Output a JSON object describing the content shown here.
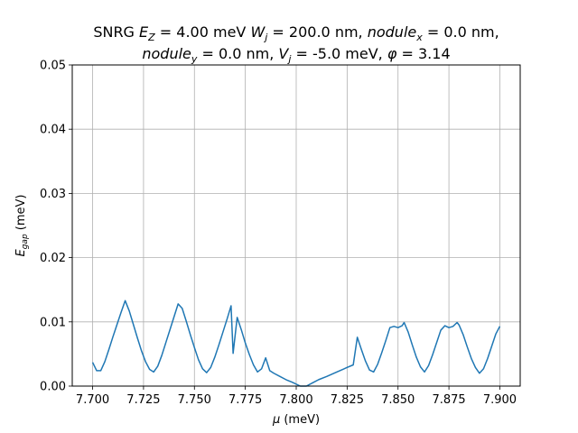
{
  "chart_data": {
    "type": "line",
    "title_line1": "SNRG E_Z = 4.00 meV W_j = 200.0 nm, nodule_x = 0.0 nm,",
    "title_line2": "nodule_y = 0.0 nm, V_j = -5.0 meV, φ = 3.14",
    "xlabel": "μ (meV)",
    "ylabel": "E_gap (meV)",
    "xlim": [
      7.69,
      7.91
    ],
    "ylim": [
      0.0,
      0.05
    ],
    "grid": true,
    "colors": {
      "line": "#1f77b4",
      "grid": "#b0b0b0"
    },
    "xticks": [
      {
        "v": 7.7,
        "label": "7.700"
      },
      {
        "v": 7.725,
        "label": "7.725"
      },
      {
        "v": 7.75,
        "label": "7.750"
      },
      {
        "v": 7.775,
        "label": "7.775"
      },
      {
        "v": 7.8,
        "label": "7.800"
      },
      {
        "v": 7.825,
        "label": "7.825"
      },
      {
        "v": 7.85,
        "label": "7.850"
      },
      {
        "v": 7.875,
        "label": "7.875"
      },
      {
        "v": 7.9,
        "label": "7.900"
      }
    ],
    "yticks": [
      {
        "v": 0.0,
        "label": "0.00"
      },
      {
        "v": 0.01,
        "label": "0.01"
      },
      {
        "v": 0.02,
        "label": "0.02"
      },
      {
        "v": 0.03,
        "label": "0.03"
      },
      {
        "v": 0.04,
        "label": "0.04"
      },
      {
        "v": 0.05,
        "label": "0.05"
      }
    ],
    "series": [
      {
        "x": [
          7.7,
          7.702,
          7.704,
          7.706,
          7.708,
          7.71,
          7.712,
          7.714,
          7.716,
          7.718,
          7.72,
          7.722,
          7.724,
          7.726,
          7.728,
          7.73,
          7.732,
          7.734,
          7.736,
          7.738,
          7.74,
          7.742,
          7.744,
          7.746,
          7.748,
          7.75,
          7.752,
          7.754,
          7.756,
          7.758,
          7.76,
          7.762,
          7.764,
          7.766,
          7.768,
          7.769,
          7.771,
          7.773,
          7.775,
          7.777,
          7.779,
          7.781,
          7.783,
          7.785,
          7.787,
          7.789,
          7.792,
          7.795,
          7.798,
          7.802,
          7.805,
          7.808,
          7.811,
          7.815,
          7.82,
          7.825,
          7.828,
          7.83,
          7.832,
          7.834,
          7.836,
          7.838,
          7.84,
          7.842,
          7.844,
          7.846,
          7.848,
          7.85,
          7.852,
          7.853,
          7.855,
          7.857,
          7.859,
          7.861,
          7.863,
          7.865,
          7.867,
          7.869,
          7.871,
          7.873,
          7.875,
          7.877,
          7.879,
          7.88,
          7.882,
          7.884,
          7.886,
          7.888,
          7.89,
          7.892,
          7.894,
          7.896,
          7.898,
          7.9
        ],
        "y": [
          0.0037,
          0.0024,
          0.0024,
          0.0038,
          0.0057,
          0.0077,
          0.0096,
          0.0115,
          0.0133,
          0.0117,
          0.0096,
          0.0075,
          0.0055,
          0.0038,
          0.0026,
          0.0022,
          0.0031,
          0.0048,
          0.0068,
          0.0088,
          0.0108,
          0.0128,
          0.0121,
          0.0101,
          0.008,
          0.006,
          0.0041,
          0.0027,
          0.0021,
          0.0029,
          0.0045,
          0.0064,
          0.0084,
          0.0104,
          0.0125,
          0.0051,
          0.0107,
          0.0088,
          0.0067,
          0.0049,
          0.0033,
          0.0022,
          0.0027,
          0.0044,
          0.0024,
          0.002,
          0.0015,
          0.001,
          0.0006,
          0.0,
          0.0,
          0.0005,
          0.001,
          0.0015,
          0.0022,
          0.0029,
          0.0033,
          0.0076,
          0.0057,
          0.0039,
          0.0025,
          0.0022,
          0.0034,
          0.0052,
          0.0071,
          0.0091,
          0.0093,
          0.0091,
          0.0094,
          0.0099,
          0.0084,
          0.0064,
          0.0045,
          0.003,
          0.0022,
          0.0032,
          0.0049,
          0.0068,
          0.0087,
          0.0094,
          0.0091,
          0.0093,
          0.0099,
          0.0095,
          0.008,
          0.0061,
          0.0043,
          0.0029,
          0.002,
          0.0027,
          0.0043,
          0.0062,
          0.0081,
          0.0093
        ]
      }
    ]
  }
}
